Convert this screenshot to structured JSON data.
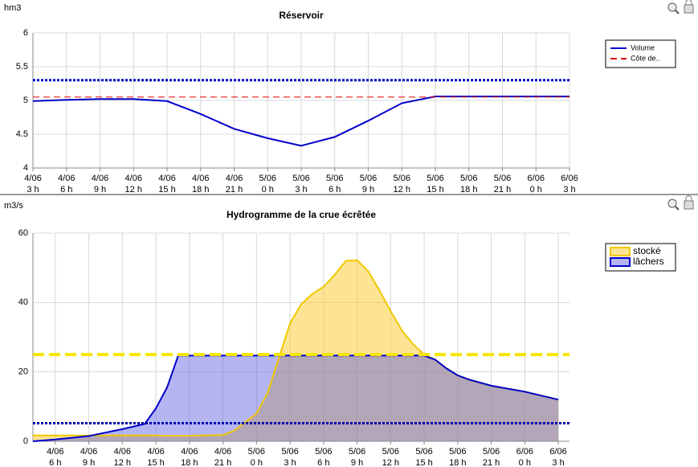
{
  "chart_data": [
    {
      "type": "line",
      "title": "Réservoir",
      "y_label": "hm3",
      "x": [
        3,
        6,
        9,
        12,
        15,
        18,
        21,
        24,
        27,
        30,
        33,
        36,
        39,
        42,
        45,
        48,
        51
      ],
      "xlim": [
        3,
        51
      ],
      "xticks": [
        {
          "value": 3,
          "label": [
            "4/06",
            "3 h"
          ]
        },
        {
          "value": 6,
          "label": [
            "4/06",
            "6 h"
          ]
        },
        {
          "value": 9,
          "label": [
            "4/06",
            "9 h"
          ]
        },
        {
          "value": 12,
          "label": [
            "4/06",
            "12 h"
          ]
        },
        {
          "value": 15,
          "label": [
            "4/06",
            "15 h"
          ]
        },
        {
          "value": 18,
          "label": [
            "4/06",
            "18 h"
          ]
        },
        {
          "value": 21,
          "label": [
            "4/06",
            "21 h"
          ]
        },
        {
          "value": 24,
          "label": [
            "5/06",
            "0 h"
          ]
        },
        {
          "value": 27,
          "label": [
            "5/06",
            "3 h"
          ]
        },
        {
          "value": 30,
          "label": [
            "5/06",
            "6 h"
          ]
        },
        {
          "value": 33,
          "label": [
            "5/06",
            "9 h"
          ]
        },
        {
          "value": 36,
          "label": [
            "5/06",
            "12 h"
          ]
        },
        {
          "value": 39,
          "label": [
            "5/06",
            "15 h"
          ]
        },
        {
          "value": 42,
          "label": [
            "5/06",
            "18 h"
          ]
        },
        {
          "value": 45,
          "label": [
            "5/06",
            "21 h"
          ]
        },
        {
          "value": 48,
          "label": [
            "6/06",
            "0 h"
          ]
        },
        {
          "value": 51,
          "label": [
            "6/06",
            "3 h"
          ]
        }
      ],
      "ylim": [
        4,
        6
      ],
      "yticks": [
        4,
        4.5,
        5,
        5.5,
        6
      ],
      "grid": true,
      "legend": "right",
      "series": [
        {
          "name": "Volume",
          "color": "#0000cc",
          "values": [
            4.99,
            5.01,
            5.02,
            5.02,
            4.99,
            4.8,
            4.58,
            4.44,
            4.33,
            4.46,
            4.7,
            4.96,
            5.06,
            5.06,
            5.06,
            5.06,
            5.06
          ]
        },
        {
          "name": "Côte de..",
          "color": "#dd0000",
          "style": "dashed",
          "value": 5.05
        }
      ],
      "reference_lines": [
        {
          "value": 5.3,
          "color": "#0000cc",
          "style": "dotted"
        }
      ]
    },
    {
      "type": "area",
      "title": "Hydrogramme de la crue écrêtée",
      "y_label": "m3/s",
      "x": [
        4,
        6,
        9,
        12,
        14,
        15,
        16,
        17,
        18,
        21,
        22,
        24,
        25,
        26,
        27,
        28,
        29,
        30,
        31,
        32,
        33,
        34,
        35,
        36,
        37,
        38,
        39,
        40,
        41,
        42,
        43,
        45,
        48,
        51
      ],
      "xlim": [
        4,
        52
      ],
      "xticks": [
        {
          "value": 6,
          "label": [
            "4/06",
            "6 h"
          ]
        },
        {
          "value": 9,
          "label": [
            "4/06",
            "9 h"
          ]
        },
        {
          "value": 12,
          "label": [
            "4/06",
            "12 h"
          ]
        },
        {
          "value": 15,
          "label": [
            "4/06",
            "15 h"
          ]
        },
        {
          "value": 18,
          "label": [
            "4/06",
            "18 h"
          ]
        },
        {
          "value": 21,
          "label": [
            "4/06",
            "21 h"
          ]
        },
        {
          "value": 24,
          "label": [
            "5/06",
            "0 h"
          ]
        },
        {
          "value": 27,
          "label": [
            "5/06",
            "3 h"
          ]
        },
        {
          "value": 30,
          "label": [
            "5/06",
            "6 h"
          ]
        },
        {
          "value": 33,
          "label": [
            "5/06",
            "9 h"
          ]
        },
        {
          "value": 36,
          "label": [
            "5/06",
            "12 h"
          ]
        },
        {
          "value": 39,
          "label": [
            "5/06",
            "15 h"
          ]
        },
        {
          "value": 42,
          "label": [
            "5/06",
            "18 h"
          ]
        },
        {
          "value": 45,
          "label": [
            "5/06",
            "21 h"
          ]
        },
        {
          "value": 48,
          "label": [
            "6/06",
            "0 h"
          ]
        },
        {
          "value": 51,
          "label": [
            "6/06",
            "3 h"
          ]
        }
      ],
      "ylim": [
        0,
        60
      ],
      "yticks": [
        0,
        20,
        40,
        60
      ],
      "grid": true,
      "legend": "right",
      "series": [
        {
          "name": "stocké",
          "color": "#f0c800",
          "fill": "rgba(250,205,60,0.55)",
          "values": [
            1.7,
            1.7,
            1.7,
            1.7,
            1.7,
            1.7,
            1.6,
            1.6,
            1.6,
            1.8,
            3,
            8,
            14,
            24,
            34,
            39.5,
            42.5,
            44.5,
            48,
            52,
            52.2,
            49,
            43.5,
            37.5,
            32,
            28,
            25,
            23.5,
            21,
            19,
            17.8,
            16,
            14.3,
            12
          ]
        },
        {
          "name": "lâchers",
          "color": "#0000cc",
          "fill": "rgba(90,90,230,0.45)",
          "values": [
            0,
            0.5,
            1.5,
            3.5,
            5,
            9.5,
            15.5,
            24.7,
            24.7,
            24.7,
            24.7,
            24.7,
            24.7,
            24.7,
            24.7,
            24.7,
            24.7,
            24.7,
            24.7,
            24.7,
            24.7,
            24.7,
            24.7,
            24.7,
            24.7,
            24.7,
            24.7,
            23.5,
            21,
            19,
            17.8,
            16,
            14.3,
            12
          ]
        }
      ],
      "reference_lines": [
        {
          "value": 25,
          "color": "#f5e600",
          "style": "dashed"
        },
        {
          "value": 5.2,
          "color": "#0000aa",
          "style": "dotted"
        }
      ]
    }
  ]
}
